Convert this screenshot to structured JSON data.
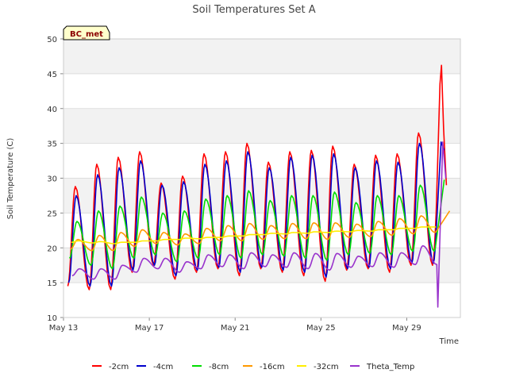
{
  "chart_data": {
    "type": "line",
    "title": "Soil Temperatures Set A",
    "xlabel": "Time",
    "ylabel": "Soil Temperature (C)",
    "ylim": [
      10,
      50
    ],
    "yticks": [
      10,
      15,
      20,
      25,
      30,
      35,
      40,
      45,
      50
    ],
    "xlim": [
      0,
      18.5
    ],
    "xticks": [
      {
        "day": 0,
        "label": "May 13"
      },
      {
        "day": 4,
        "label": "May 17"
      },
      {
        "day": 8,
        "label": "May 21"
      },
      {
        "day": 12,
        "label": "May 25"
      },
      {
        "day": 16,
        "label": "May 29"
      }
    ],
    "badge": "BC_met",
    "background_bands": true,
    "legend_position": "bottom",
    "series": [
      {
        "name": "-2cm",
        "color": "#ff0000",
        "peaks": [
          28.8,
          32,
          33,
          33.8,
          29.3,
          30.3,
          33.5,
          33.8,
          35,
          32.3,
          33.8,
          34,
          34.6,
          32,
          33.3,
          33.5,
          36.5,
          33.4
        ],
        "troughs": [
          14.5,
          14,
          14,
          16.5,
          17.5,
          15.5,
          16.5,
          17,
          16,
          17,
          16.5,
          16,
          15.2,
          16.8,
          17,
          16.5,
          17.5,
          17.5
        ],
        "spikes": [
          [
            17.55,
            43.5
          ],
          [
            17.62,
            46.2
          ],
          [
            17.72,
            37
          ],
          [
            17.85,
            29
          ]
        ]
      },
      {
        "name": "-4cm",
        "color": "#0000cc",
        "peaks": [
          27.5,
          30.5,
          31.5,
          32.5,
          29,
          29.5,
          32,
          32.5,
          33.8,
          31.5,
          33,
          33.3,
          33.5,
          31.5,
          32.5,
          32.3,
          35,
          32.5
        ],
        "troughs": [
          15,
          14.5,
          14.5,
          16.8,
          17.5,
          16,
          16.8,
          17.2,
          16.5,
          17.2,
          16.8,
          16.5,
          15.8,
          17,
          17.2,
          17,
          17.8,
          17.8
        ],
        "spikes": [
          [
            17.6,
            35.2
          ],
          [
            17.75,
            34
          ]
        ]
      },
      {
        "name": "-8cm",
        "color": "#00dd00",
        "peaks": [
          23.8,
          25.3,
          26,
          27.3,
          25,
          25.3,
          27,
          27.5,
          28.2,
          26.8,
          27.5,
          27.5,
          28,
          26.5,
          27.5,
          27.5,
          29,
          28.5
        ],
        "troughs": [
          18.5,
          17.5,
          17,
          18.5,
          19,
          18,
          18.5,
          19,
          18.5,
          19,
          18.8,
          18.5,
          18.2,
          19,
          19.2,
          19,
          19.5,
          19.5
        ],
        "spikes": [
          [
            17.75,
            29.8
          ]
        ]
      },
      {
        "name": "-16cm",
        "color": "#ff9900",
        "peaks": [
          21.2,
          21.8,
          22.2,
          22.6,
          22.2,
          22,
          22.8,
          23.2,
          23.5,
          23.2,
          23.5,
          23.6,
          23.6,
          23.4,
          23.8,
          24.2,
          24.6,
          24.6
        ],
        "troughs": [
          19.8,
          19.6,
          19.6,
          20.2,
          20.6,
          20.4,
          20.6,
          21,
          21,
          21.2,
          21.3,
          21.3,
          21.2,
          21.5,
          21.6,
          21.8,
          22,
          22.2
        ],
        "spikes": [
          [
            18.0,
            25.3
          ]
        ]
      },
      {
        "name": "-32cm",
        "color": "#ffee00",
        "peaks": [
          21,
          20.9,
          20.8,
          21,
          21.2,
          21.4,
          21.5,
          21.7,
          21.9,
          22.1,
          22.2,
          22.3,
          22.4,
          22.5,
          22.6,
          22.8,
          23,
          23.2
        ],
        "troughs": [
          20.8,
          20.7,
          20.6,
          20.8,
          21,
          21.2,
          21.3,
          21.5,
          21.7,
          21.9,
          22,
          22.1,
          22.2,
          22.3,
          22.4,
          22.6,
          22.8,
          23
        ],
        "spikes": []
      },
      {
        "name": "Theta_Temp",
        "color": "#9933cc",
        "peaks": [
          17,
          17,
          17.5,
          18.5,
          18.5,
          18,
          19,
          19,
          19.3,
          19,
          19.3,
          19.2,
          19.2,
          18.8,
          19.3,
          19.3,
          20.3,
          20
        ],
        "troughs": [
          16,
          15.5,
          15.5,
          16.5,
          17,
          16.5,
          17,
          17.3,
          17,
          17.3,
          17.2,
          17,
          16.8,
          17.2,
          17.3,
          17.2,
          17.6,
          17.6
        ],
        "spikes": [
          [
            17.45,
            11.5
          ],
          [
            17.68,
            35.2
          ],
          [
            17.82,
            30
          ]
        ]
      }
    ]
  }
}
